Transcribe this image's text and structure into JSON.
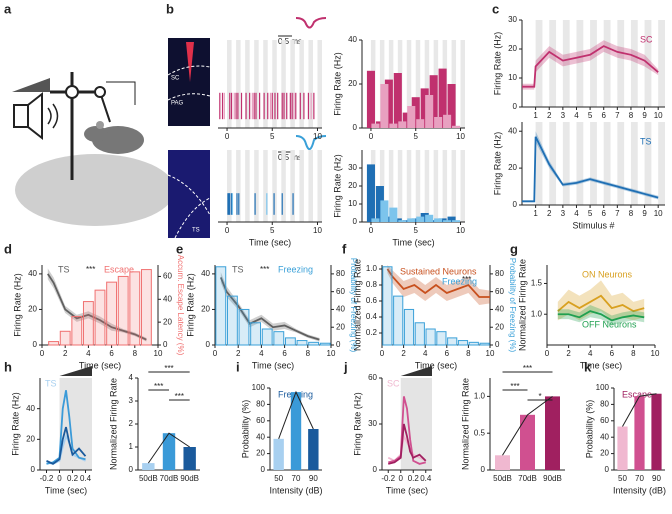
{
  "panel_labels": [
    "a",
    "b",
    "c",
    "d",
    "e",
    "f",
    "g",
    "h",
    "i",
    "j",
    "k"
  ],
  "images": [
    {
      "labels": [
        "SC",
        "PAG"
      ]
    },
    {
      "labels": [
        "TS"
      ]
    }
  ],
  "waveform_scales": [
    "0.5 ms",
    "0.5 ms"
  ],
  "chart_data": [
    {
      "type": "raster",
      "xlim": [
        -1,
        10.5
      ],
      "xticks": [
        0,
        5,
        10
      ],
      "stimuli": true,
      "series": [
        {
          "color": "#c0306e",
          "values": [
            -0.8,
            -0.5,
            0.3,
            0.5,
            1.0,
            1.2,
            1.6,
            2.1,
            2.5,
            3.0,
            3.2,
            3.6,
            4.1,
            4.5,
            5.0,
            5.3,
            5.6,
            6.1,
            6.3,
            6.6,
            7.0,
            7.2,
            7.6,
            8.1,
            8.5,
            9.0,
            9.6
          ]
        },
        {
          "color": "#e8a0c0",
          "values": [
            -0.3,
            0.8,
            2.8,
            4.8,
            7.4,
            9.3
          ]
        }
      ]
    },
    {
      "type": "bar",
      "ylabel": "Firing Rate (Hz)",
      "xlim": [
        -1,
        10.5
      ],
      "xticks": [
        0,
        5,
        10
      ],
      "ylim": [
        0,
        40
      ],
      "yticks": [
        0,
        20,
        40
      ],
      "stimuli": true,
      "series": [
        {
          "color": "#c0306e",
          "x": [
            0,
            1,
            2,
            3,
            4,
            5,
            6,
            7,
            8,
            9
          ],
          "values": [
            26,
            3,
            22,
            25,
            7,
            14,
            18,
            24,
            27,
            20
          ]
        },
        {
          "color": "#e8a0c0",
          "x": [
            0.5,
            1.5,
            2.5,
            3.5,
            4.5,
            5.5,
            6.5,
            7.5,
            8.5,
            9.5
          ],
          "values": [
            2,
            20,
            2,
            3,
            10,
            4,
            15,
            5,
            6,
            1
          ]
        }
      ]
    },
    {
      "type": "raster",
      "xlabel": "Time (sec)",
      "xlim": [
        -1,
        10.5
      ],
      "xticks": [
        0,
        5,
        10
      ],
      "stimuli": true,
      "series": [
        {
          "color": "#1f6fb4",
          "values": [
            0.1,
            0.2,
            0.3,
            0.5,
            1.1,
            1.3,
            3.1,
            5.2,
            6.1,
            7.3
          ]
        },
        {
          "color": "#7cc4ec",
          "values": [
            0.6,
            4.4
          ]
        }
      ]
    },
    {
      "type": "bar",
      "ylabel": "Firing Rate (Hz)",
      "xlabel": "Time (sec)",
      "xlim": [
        -1,
        10.5
      ],
      "xticks": [
        0,
        5,
        10
      ],
      "ylim": [
        0,
        40
      ],
      "yticks": [
        0,
        10,
        20,
        30
      ],
      "stimuli": true,
      "series": [
        {
          "color": "#1f6fb4",
          "x": [
            0,
            1,
            2,
            3,
            4,
            5,
            6,
            7,
            8,
            9
          ],
          "values": [
            32,
            20,
            3,
            2,
            1,
            2,
            5,
            1,
            2,
            3
          ]
        },
        {
          "color": "#7cc4ec",
          "x": [
            0.5,
            1.5,
            2.5,
            3.5,
            4.5,
            5.5,
            6.5,
            7.5,
            8.5,
            9.5
          ],
          "values": [
            2,
            12,
            8,
            1,
            2,
            3,
            4,
            2,
            1,
            1
          ]
        }
      ]
    },
    {
      "type": "line",
      "label": "SC",
      "ylabel": "Firing Rate (Hz)",
      "xlim": [
        0,
        10.5
      ],
      "xticks": [
        1,
        2,
        3,
        4,
        5,
        6,
        7,
        8,
        9,
        10
      ],
      "ylim": [
        0,
        30
      ],
      "yticks": [
        0,
        10,
        20,
        30
      ],
      "stimuli": true,
      "series": [
        {
          "color": "#c0306e",
          "x": [
            0,
            0.9,
            1,
            2,
            3,
            4,
            5,
            6,
            7,
            8,
            9,
            10
          ],
          "values": [
            7,
            7,
            14,
            19,
            16,
            17,
            18,
            21,
            19,
            18,
            16,
            12
          ],
          "error": [
            1,
            1,
            2,
            2,
            2,
            2,
            2,
            2,
            2,
            2,
            2,
            1
          ]
        }
      ]
    },
    {
      "type": "line",
      "label": "TS",
      "ylabel": "Firing Rate (Hz)",
      "xlabel": "Stimulus #",
      "xlim": [
        0,
        10.5
      ],
      "xticks": [
        1,
        2,
        3,
        4,
        5,
        6,
        7,
        8,
        9,
        10
      ],
      "ylim": [
        0,
        45
      ],
      "yticks": [
        0,
        20,
        40
      ],
      "stimuli": true,
      "series": [
        {
          "color": "#1f6fb4",
          "x": [
            0,
            0.9,
            1,
            2,
            3,
            4,
            5,
            6,
            7,
            8,
            9,
            10
          ],
          "values": [
            2,
            2,
            37,
            22,
            11,
            12,
            14,
            12,
            10,
            8,
            6,
            4
          ],
          "error": [
            0.5,
            0.5,
            3,
            2,
            1,
            1,
            1,
            1,
            1,
            1,
            1,
            1
          ]
        }
      ]
    },
    {
      "type": "combo",
      "significance": [
        "***"
      ],
      "xlabel": "Time (sec)",
      "ylabel": "Firing Rate (Hz)",
      "y2label": "Accum. Escape Latency (%)",
      "xlim": [
        0,
        10
      ],
      "xticks": [
        0,
        2,
        4,
        6,
        8,
        10
      ],
      "ylim": [
        0,
        45
      ],
      "yticks": [
        0,
        20,
        40
      ],
      "y2lim": [
        0,
        70
      ],
      "y2ticks": [
        0,
        20,
        40,
        60
      ],
      "series": [
        {
          "name": "TS",
          "color": "#606060",
          "x": [
            0.5,
            1,
            2,
            3,
            4,
            5,
            6,
            7,
            8,
            9
          ],
          "values": [
            40,
            35,
            20,
            15,
            17,
            14,
            10,
            8,
            6,
            3
          ],
          "error": [
            3,
            3,
            2,
            2,
            2,
            2,
            2,
            1,
            1,
            1
          ]
        },
        {
          "name": "Escape",
          "kind": "bar",
          "axis": "y2",
          "color": "#f07070",
          "x": [
            1,
            2,
            3,
            4,
            5,
            6,
            7,
            8,
            9
          ],
          "values": [
            3,
            12,
            25,
            38,
            48,
            55,
            60,
            64,
            66
          ]
        }
      ]
    },
    {
      "type": "combo",
      "significance": [
        "***"
      ],
      "xlabel": "Time (sec)",
      "ylabel": "Firing Rate (Hz)",
      "y2label": "Probability of Freezing (%)",
      "xlim": [
        0,
        10
      ],
      "xticks": [
        0,
        2,
        4,
        6,
        8,
        10
      ],
      "ylim": [
        0,
        45
      ],
      "yticks": [
        0,
        20,
        40
      ],
      "y2lim": [
        0,
        90
      ],
      "y2ticks": [
        0,
        20,
        40,
        60,
        80
      ],
      "series": [
        {
          "name": "TS",
          "color": "#606060",
          "x": [
            0.5,
            1,
            2,
            3,
            4,
            5,
            6,
            7,
            8,
            9
          ],
          "values": [
            38,
            30,
            22,
            12,
            15,
            10,
            11,
            8,
            5,
            3
          ],
          "error": [
            3,
            3,
            2,
            2,
            2,
            2,
            2,
            1,
            1,
            1
          ]
        },
        {
          "name": "Freezing",
          "kind": "bar",
          "axis": "y2",
          "color": "#3aa0d8",
          "x": [
            0.5,
            1.5,
            2.5,
            3.5,
            4.5,
            5.5,
            6.5,
            7.5,
            8.5,
            9.5
          ],
          "values": [
            88,
            55,
            40,
            25,
            18,
            15,
            8,
            5,
            3,
            2
          ]
        }
      ]
    },
    {
      "type": "combo",
      "significance": [
        "***"
      ],
      "xlabel": "Time (sec)",
      "ylabel": "Normalized Firing Rate",
      "y2label": "Probability of Freezing (%)",
      "xlim": [
        0,
        10
      ],
      "xticks": [
        0,
        2,
        4,
        6,
        8,
        10
      ],
      "ylim": [
        0.05,
        1.05
      ],
      "yticks": [
        0.2,
        0.4,
        0.6,
        0.8,
        {
          "value": 1,
          "label": "1.0"
        }
      ],
      "y2lim": [
        0,
        90
      ],
      "y2ticks": [
        0,
        20,
        40,
        60,
        80
      ],
      "series": [
        {
          "name": "Sustained Neurons",
          "color": "#c8501e",
          "x": [
            0.5,
            1,
            2,
            3,
            4,
            5,
            6,
            7,
            8,
            9,
            10
          ],
          "values": [
            1.0,
            0.9,
            0.75,
            0.8,
            0.7,
            0.8,
            0.7,
            0.75,
            0.8,
            0.65,
            0.65
          ],
          "error": [
            0.05,
            0.08,
            0.1,
            0.1,
            0.1,
            0.1,
            0.1,
            0.1,
            0.1,
            0.1,
            0.08
          ]
        },
        {
          "name": "Freezing",
          "kind": "bar",
          "axis": "y2",
          "color": "#3aa0d8",
          "x": [
            0.5,
            1.5,
            2.5,
            3.5,
            4.5,
            5.5,
            6.5,
            7.5,
            8.5,
            9.5
          ],
          "values": [
            88,
            55,
            40,
            25,
            18,
            15,
            8,
            5,
            3,
            2
          ]
        }
      ]
    },
    {
      "type": "line",
      "ylabel": "Normalized Firing Rate",
      "xlabel": "Time (sec)",
      "xlim": [
        0,
        10
      ],
      "xticks": [
        0,
        2,
        4,
        6,
        8,
        10
      ],
      "ylim": [
        0.5,
        1.8
      ],
      "yticks": [
        {
          "value": 1,
          "label": "1.0"
        },
        1.5
      ],
      "series": [
        {
          "name": "ON Neurons",
          "color": "#d8a020",
          "x": [
            1,
            2,
            3,
            4,
            5,
            6,
            7,
            8,
            9
          ],
          "values": [
            1.05,
            1.2,
            1.1,
            1.2,
            1.3,
            1.1,
            1.15,
            1.05,
            1.1
          ],
          "error": [
            0.15,
            0.2,
            0.2,
            0.2,
            0.25,
            0.2,
            0.2,
            0.15,
            0.15
          ]
        },
        {
          "name": "OFF Neurons",
          "color": "#20a050",
          "x": [
            1,
            2,
            3,
            4,
            5,
            6,
            7,
            8,
            9
          ],
          "values": [
            1.0,
            1.0,
            0.95,
            1.05,
            1.0,
            0.9,
            0.95,
            0.98,
            0.95
          ],
          "error": [
            0.08,
            0.08,
            0.08,
            0.1,
            0.08,
            0.08,
            0.08,
            0.08,
            0.08
          ]
        }
      ]
    },
    {
      "type": "line",
      "label": "TS",
      "stimulus_shading": true,
      "ylabel": "Firing Rate (Hz)",
      "xlabel": "Time (sec)",
      "xlim": [
        -0.3,
        0.5
      ],
      "xticks": [
        -0.2,
        0,
        0.2,
        0.4
      ],
      "ylim": [
        0,
        60
      ],
      "yticks": [
        0,
        20,
        40
      ],
      "series": [
        {
          "color": "#a8d0f0",
          "x": [
            -0.2,
            -0.1,
            0,
            0.05,
            0.1,
            0.15,
            0.2,
            0.3,
            0.4
          ],
          "values": [
            5,
            4,
            6,
            15,
            22,
            18,
            10,
            8,
            6
          ]
        },
        {
          "color": "#3a9ad8",
          "x": [
            -0.2,
            -0.1,
            0,
            0.05,
            0.1,
            0.15,
            0.2,
            0.3,
            0.4
          ],
          "values": [
            4,
            5,
            8,
            40,
            52,
            35,
            14,
            8,
            7
          ]
        },
        {
          "color": "#1a5a9c",
          "x": [
            -0.2,
            -0.1,
            0,
            0.05,
            0.1,
            0.15,
            0.2,
            0.3,
            0.4
          ],
          "values": [
            6,
            4,
            7,
            20,
            28,
            18,
            10,
            14,
            9
          ]
        }
      ]
    },
    {
      "type": "bar",
      "connect": true,
      "significance": [
        "***",
        "***",
        "***"
      ],
      "ylabel": "Normalized Firing Rate",
      "categories": [
        "50dB",
        "70dB",
        "90dB"
      ],
      "ylim": [
        0,
        4
      ],
      "yticks": [
        0,
        1,
        2,
        3,
        4
      ],
      "colors": [
        "#a8d0f0",
        "#3a9ad8",
        "#1a5a9c"
      ],
      "series": [
        {
          "values": [
            0.3,
            1.6,
            1.0
          ]
        }
      ]
    },
    {
      "type": "bar",
      "connect": true,
      "label": "Freezing",
      "ylabel": "Probability (%)",
      "xlabel": "Intensity (dB)",
      "categories": [
        "50",
        "70",
        "90"
      ],
      "ylim": [
        0,
        100
      ],
      "yticks": [
        0,
        20,
        40,
        60,
        80,
        100
      ],
      "colors": [
        "#a8d0f0",
        "#3a9ad8",
        "#1a5a9c"
      ],
      "series": [
        {
          "values": [
            38,
            95,
            50
          ]
        }
      ]
    },
    {
      "type": "line",
      "label": "SC",
      "stimulus_shading": true,
      "ylabel": "Firing Rate (Hz)",
      "xlabel": "Time (sec)",
      "xlim": [
        -0.3,
        0.5
      ],
      "xticks": [
        -0.2,
        0,
        0.2,
        0.4
      ],
      "ylim": [
        0,
        60
      ],
      "yticks": [
        0,
        30,
        60
      ],
      "series": [
        {
          "color": "#f0b8d0",
          "x": [
            -0.2,
            -0.1,
            0,
            0.05,
            0.1,
            0.15,
            0.2,
            0.3,
            0.4
          ],
          "values": [
            8,
            6,
            10,
            22,
            18,
            14,
            10,
            8,
            6
          ]
        },
        {
          "color": "#d05090",
          "x": [
            -0.2,
            -0.1,
            0,
            0.05,
            0.1,
            0.15,
            0.2,
            0.3,
            0.4
          ],
          "values": [
            5,
            6,
            9,
            48,
            40,
            20,
            6,
            4,
            5
          ]
        },
        {
          "color": "#a02060",
          "x": [
            -0.2,
            -0.1,
            0,
            0.05,
            0.1,
            0.15,
            0.2,
            0.3,
            0.4
          ],
          "values": [
            4,
            5,
            8,
            30,
            22,
            12,
            8,
            10,
            6
          ]
        }
      ]
    },
    {
      "type": "bar",
      "connect": true,
      "significance": [
        "***",
        "***",
        "*"
      ],
      "ylabel": "Normalized Firing Rate",
      "categories": [
        "50dB",
        "70dB",
        "90dB"
      ],
      "ylim": [
        0,
        1.25
      ],
      "yticks": [
        0,
        0.5,
        {
          "value": 1,
          "label": "1.0"
        }
      ],
      "colors": [
        "#f0b8d0",
        "#d05090",
        "#a02060"
      ],
      "series": [
        {
          "values": [
            0.2,
            0.75,
            1.0
          ]
        }
      ]
    },
    {
      "type": "bar",
      "connect": true,
      "label": "Escape",
      "ylabel": "Probability (%)",
      "xlabel": "Intensity (dB)",
      "categories": [
        "50",
        "70",
        "90"
      ],
      "ylim": [
        0,
        100
      ],
      "yticks": [
        0,
        20,
        40,
        60,
        80,
        100
      ],
      "colors": [
        "#f0b8d0",
        "#d05090",
        "#a02060"
      ],
      "series": [
        {
          "values": [
            53,
            90,
            93
          ]
        }
      ]
    }
  ]
}
